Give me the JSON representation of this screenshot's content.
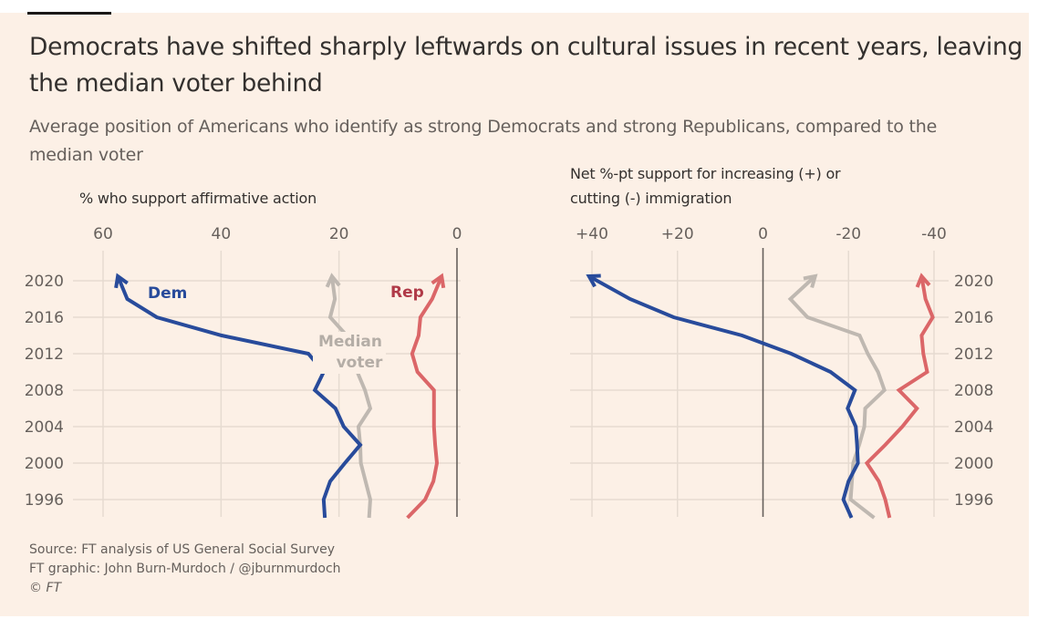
{
  "title": "Democrats have shifted sharply leftwards on cultural issues in recent years, leaving the median voter behind",
  "subtitle": "Average position of Americans who identify as strong Democrats and strong Republicans, compared to the median voter",
  "footer": {
    "source": "Source: FT analysis of US General Social Survey",
    "credit": "FT graphic: John Burn-Murdoch / @jburnmurdoch",
    "copyright_symbol": "©",
    "copyright_name": "FT"
  },
  "colors": {
    "dem": "#284b9b",
    "rep": "#db6668",
    "median": "#bfb8b1",
    "grid": "#e6dbd1",
    "zero": "#66605c",
    "rep_label": "#b03a48"
  },
  "chart_data": [
    {
      "type": "line",
      "title": "% who support affirmative action",
      "xlabel": "% who support affirmative action",
      "ylabel": "",
      "orientation": "vertical-time",
      "xlim": [
        60,
        0
      ],
      "x_reversed": true,
      "ylim": [
        1994,
        2022
      ],
      "x_ticks": [
        60,
        40,
        20,
        0
      ],
      "x_tick_labels": [
        "60",
        "40",
        "20",
        "0"
      ],
      "y_ticks": [
        2020,
        2016,
        2012,
        2008,
        2004,
        2000,
        1996
      ],
      "y_tick_labels": [
        "2020",
        "2016",
        "2012",
        "2008",
        "2004",
        "2000",
        "1996"
      ],
      "y_axis_side": "left",
      "grid": true,
      "series": [
        {
          "name": "Dem",
          "label": "Dem",
          "key": "dem",
          "years": [
            1994,
            1996,
            1998,
            2000,
            2002,
            2004,
            2006,
            2008,
            2010,
            2012,
            2014,
            2016,
            2018,
            2020.5
          ],
          "values": [
            22.4,
            22.6,
            21.5,
            19.0,
            16.4,
            19.2,
            20.6,
            24.1,
            22.6,
            25.2,
            39.9,
            50.9,
            55.9,
            57.5
          ]
        },
        {
          "name": "Median voter",
          "label": "Median voter",
          "key": "median",
          "years": [
            1994,
            1996,
            1998,
            2000,
            2002,
            2004,
            2006,
            2008,
            2010,
            2014,
            2016,
            2018,
            2020.5
          ],
          "values": [
            14.9,
            14.7,
            15.5,
            16.3,
            16.4,
            16.7,
            14.7,
            15.6,
            16.9,
            18.7,
            21.5,
            20.7,
            21.2
          ]
        },
        {
          "name": "Rep",
          "label": "Rep",
          "key": "rep",
          "years": [
            1994,
            1996,
            1998,
            2000,
            2002,
            2004,
            2006,
            2008,
            2010,
            2012,
            2014,
            2016,
            2018,
            2020.5
          ],
          "values": [
            8.4,
            5.4,
            4.0,
            3.4,
            3.7,
            3.9,
            3.9,
            3.9,
            6.7,
            7.6,
            6.5,
            6.2,
            4.2,
            2.6
          ]
        }
      ]
    },
    {
      "type": "line",
      "title": "Net %-pt support for increasing (+) or cutting (-) immigration",
      "xlabel": "Net %-pt support for increasing (+) or cutting (-) immigration",
      "ylabel": "",
      "orientation": "vertical-time",
      "xlim": [
        40,
        -40
      ],
      "x_reversed": true,
      "ylim": [
        1994,
        2022
      ],
      "x_ticks": [
        40,
        20,
        0,
        -20,
        -40
      ],
      "x_tick_labels": [
        "+40",
        "+20",
        "0",
        "-20",
        "-40"
      ],
      "y_ticks": [
        2020,
        2016,
        2012,
        2008,
        2004,
        2000,
        1996
      ],
      "y_tick_labels": [
        "2020",
        "2016",
        "2012",
        "2008",
        "2004",
        "2000",
        "1996"
      ],
      "y_axis_side": "right",
      "grid": true,
      "series": [
        {
          "name": "Dem",
          "key": "dem",
          "years": [
            1994,
            1996,
            1998,
            2000,
            2002,
            2004,
            2006,
            2008,
            2010,
            2012,
            2014,
            2016,
            2018,
            2020.5
          ],
          "values": [
            -20.7,
            -18.8,
            -20.0,
            -22.2,
            -22.0,
            -21.7,
            -19.8,
            -21.5,
            -15.8,
            -6.6,
            4.9,
            20.9,
            31.1,
            40.7
          ]
        },
        {
          "name": "Median voter",
          "key": "median",
          "years": [
            1994,
            1996,
            1998,
            2000,
            2002,
            2004,
            2006,
            2008,
            2010,
            2012,
            2014,
            2016,
            2018,
            2020.5
          ],
          "values": [
            -26.0,
            -20.5,
            -20.8,
            -21.1,
            -22.5,
            -23.7,
            -23.9,
            -28.4,
            -26.9,
            -24.5,
            -22.6,
            -10.4,
            -6.4,
            -12.2
          ]
        },
        {
          "name": "Rep",
          "key": "rep",
          "years": [
            1994,
            1996,
            1998,
            2000,
            2002,
            2004,
            2006,
            2008,
            2010,
            2012,
            2014,
            2016,
            2018,
            2020.5
          ],
          "values": [
            -29.6,
            -28.6,
            -27.1,
            -24.3,
            -28.6,
            -32.6,
            -36.0,
            -31.8,
            -38.4,
            -37.5,
            -37.1,
            -39.7,
            -38.0,
            -37.1
          ]
        }
      ]
    }
  ]
}
